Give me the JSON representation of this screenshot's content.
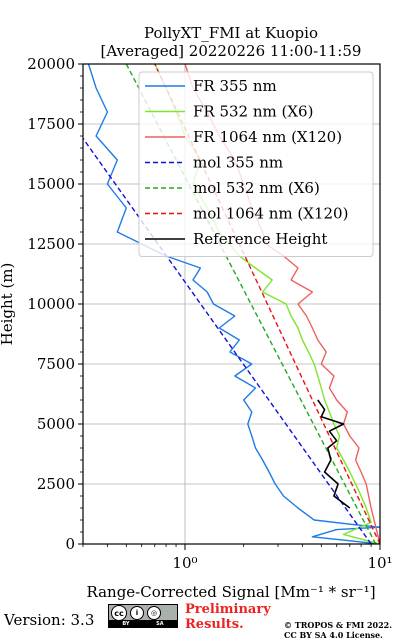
{
  "chart_data": {
    "type": "line",
    "title": "PollyXT_FMI at Kuopio",
    "subtitle": "[Averaged] 20220226 11:00-11:59",
    "xlabel": "Range-Corrected Signal [Mm⁻¹ * sr⁻¹]",
    "ylabel": "Height (m)",
    "xscale": "log",
    "xlim": [
      0.3,
      10
    ],
    "ylim": [
      0,
      20000
    ],
    "x_ticks": [
      {
        "value": 1,
        "label": "10⁰"
      },
      {
        "value": 10,
        "label": "10¹"
      }
    ],
    "y_ticks": [
      0,
      2500,
      5000,
      7500,
      10000,
      12500,
      15000,
      17500,
      20000
    ],
    "y_tick_labels": [
      "0",
      "2500",
      "5000",
      "7500",
      "10000",
      "12500",
      "15000",
      "17500",
      "20000"
    ],
    "grid": true,
    "legend_position": "top-right",
    "series": [
      {
        "name": "FR 355 nm",
        "color": "#1f7be6",
        "style": "solid",
        "points": [
          [
            10,
            0
          ],
          [
            4.5,
            300
          ],
          [
            6,
            600
          ],
          [
            10,
            700
          ],
          [
            7.5,
            800
          ],
          [
            4.6,
            1000
          ],
          [
            3.8,
            1500
          ],
          [
            3.2,
            2000
          ],
          [
            2.9,
            2500
          ],
          [
            2.7,
            3000
          ],
          [
            2.5,
            3500
          ],
          [
            2.3,
            4000
          ],
          [
            2.2,
            4500
          ],
          [
            2.1,
            5000
          ],
          [
            2.2,
            5500
          ],
          [
            2.0,
            6000
          ],
          [
            2.3,
            6500
          ],
          [
            1.8,
            7000
          ],
          [
            2.2,
            7500
          ],
          [
            1.7,
            8000
          ],
          [
            1.9,
            8500
          ],
          [
            1.5,
            9000
          ],
          [
            1.8,
            9500
          ],
          [
            1.4,
            10000
          ],
          [
            1.3,
            10500
          ],
          [
            1.1,
            11000
          ],
          [
            1.2,
            11500
          ],
          [
            0.8,
            12000
          ],
          [
            0.6,
            12500
          ],
          [
            0.45,
            13000
          ],
          [
            0.5,
            14000
          ],
          [
            0.4,
            15000
          ],
          [
            0.45,
            16000
          ],
          [
            0.35,
            17000
          ],
          [
            0.4,
            18000
          ],
          [
            0.35,
            19000
          ],
          [
            0.32,
            20000
          ]
        ]
      },
      {
        "name": "FR 532 nm (X6)",
        "color": "#7ee62a",
        "style": "solid",
        "points": [
          [
            10,
            0
          ],
          [
            6.5,
            400
          ],
          [
            9,
            900
          ],
          [
            8.5,
            1500
          ],
          [
            8,
            2000
          ],
          [
            7.5,
            2500
          ],
          [
            7,
            3000
          ],
          [
            6.5,
            3500
          ],
          [
            6,
            4000
          ],
          [
            6.2,
            4500
          ],
          [
            5.8,
            5000
          ],
          [
            5.5,
            5500
          ],
          [
            5.2,
            6000
          ],
          [
            5,
            6500
          ],
          [
            4.8,
            7000
          ],
          [
            4.6,
            7500
          ],
          [
            4.3,
            8000
          ],
          [
            4,
            8500
          ],
          [
            3.8,
            9000
          ],
          [
            3.5,
            9500
          ],
          [
            3.3,
            10000
          ],
          [
            2.5,
            10500
          ],
          [
            2.8,
            11000
          ],
          [
            2.3,
            11500
          ],
          [
            1.9,
            12000
          ],
          [
            1.5,
            13000
          ],
          [
            1.3,
            14000
          ],
          [
            1.1,
            15000
          ],
          [
            1.2,
            16000
          ],
          [
            1.0,
            17000
          ],
          [
            0.9,
            18000
          ],
          [
            0.8,
            19000
          ],
          [
            0.7,
            20000
          ]
        ]
      },
      {
        "name": "FR 1064 nm (X120)",
        "color": "#f06060",
        "style": "solid",
        "points": [
          [
            10,
            0
          ],
          [
            9,
            1500
          ],
          [
            8.5,
            2500
          ],
          [
            8,
            3000
          ],
          [
            7.5,
            3500
          ],
          [
            7.8,
            4000
          ],
          [
            7,
            4500
          ],
          [
            6.5,
            5000
          ],
          [
            6.8,
            5500
          ],
          [
            6,
            6000
          ],
          [
            5.5,
            6500
          ],
          [
            5.8,
            7000
          ],
          [
            5,
            7500
          ],
          [
            5.3,
            8000
          ],
          [
            4.8,
            8500
          ],
          [
            4.5,
            9000
          ],
          [
            4.2,
            9500
          ],
          [
            3.8,
            10000
          ],
          [
            4.5,
            10500
          ],
          [
            3.5,
            11000
          ],
          [
            3.8,
            11500
          ],
          [
            3.2,
            12000
          ],
          [
            2.6,
            12500
          ],
          [
            2.5,
            13000
          ],
          [
            2.2,
            14000
          ],
          [
            2,
            15000
          ],
          [
            1.8,
            16000
          ],
          [
            1.5,
            17000
          ],
          [
            1.3,
            18000
          ],
          [
            1.1,
            19000
          ],
          [
            1.0,
            20000
          ]
        ]
      },
      {
        "name": "mol 355 nm",
        "color": "#1010dd",
        "style": "dashed",
        "points": [
          [
            9,
            0
          ],
          [
            0.3,
            16900
          ]
        ]
      },
      {
        "name": "mol 532 nm (X6)",
        "color": "#22aa22",
        "style": "dashed",
        "points": [
          [
            9.5,
            0
          ],
          [
            0.5,
            20000
          ]
        ]
      },
      {
        "name": "mol 1064 nm (X120)",
        "color": "#ee1111",
        "style": "dashed",
        "points": [
          [
            10,
            0
          ],
          [
            0.7,
            20000
          ]
        ]
      },
      {
        "name": "Reference Height",
        "color": "#000000",
        "style": "solid",
        "points": [
          [
            7,
            1500
          ],
          [
            5.8,
            2000
          ],
          [
            6.1,
            2500
          ],
          [
            5.2,
            3000
          ],
          [
            5.6,
            3500
          ],
          [
            5.4,
            4000
          ],
          [
            6.0,
            4300
          ],
          [
            5.5,
            4700
          ],
          [
            6.5,
            5000
          ],
          [
            5.0,
            5300
          ],
          [
            5.2,
            5600
          ],
          [
            4.8,
            6000
          ]
        ]
      }
    ]
  },
  "footer": {
    "version": "Version: 3.3",
    "license_badge": {
      "top": "cc  i  ◎",
      "bottom": [
        "BY",
        "SA"
      ]
    },
    "preliminary": [
      "Preliminary",
      "Results."
    ],
    "copyright": [
      "© TROPOS & FMI 2022.",
      "CC BY SA 4.0 License."
    ]
  }
}
